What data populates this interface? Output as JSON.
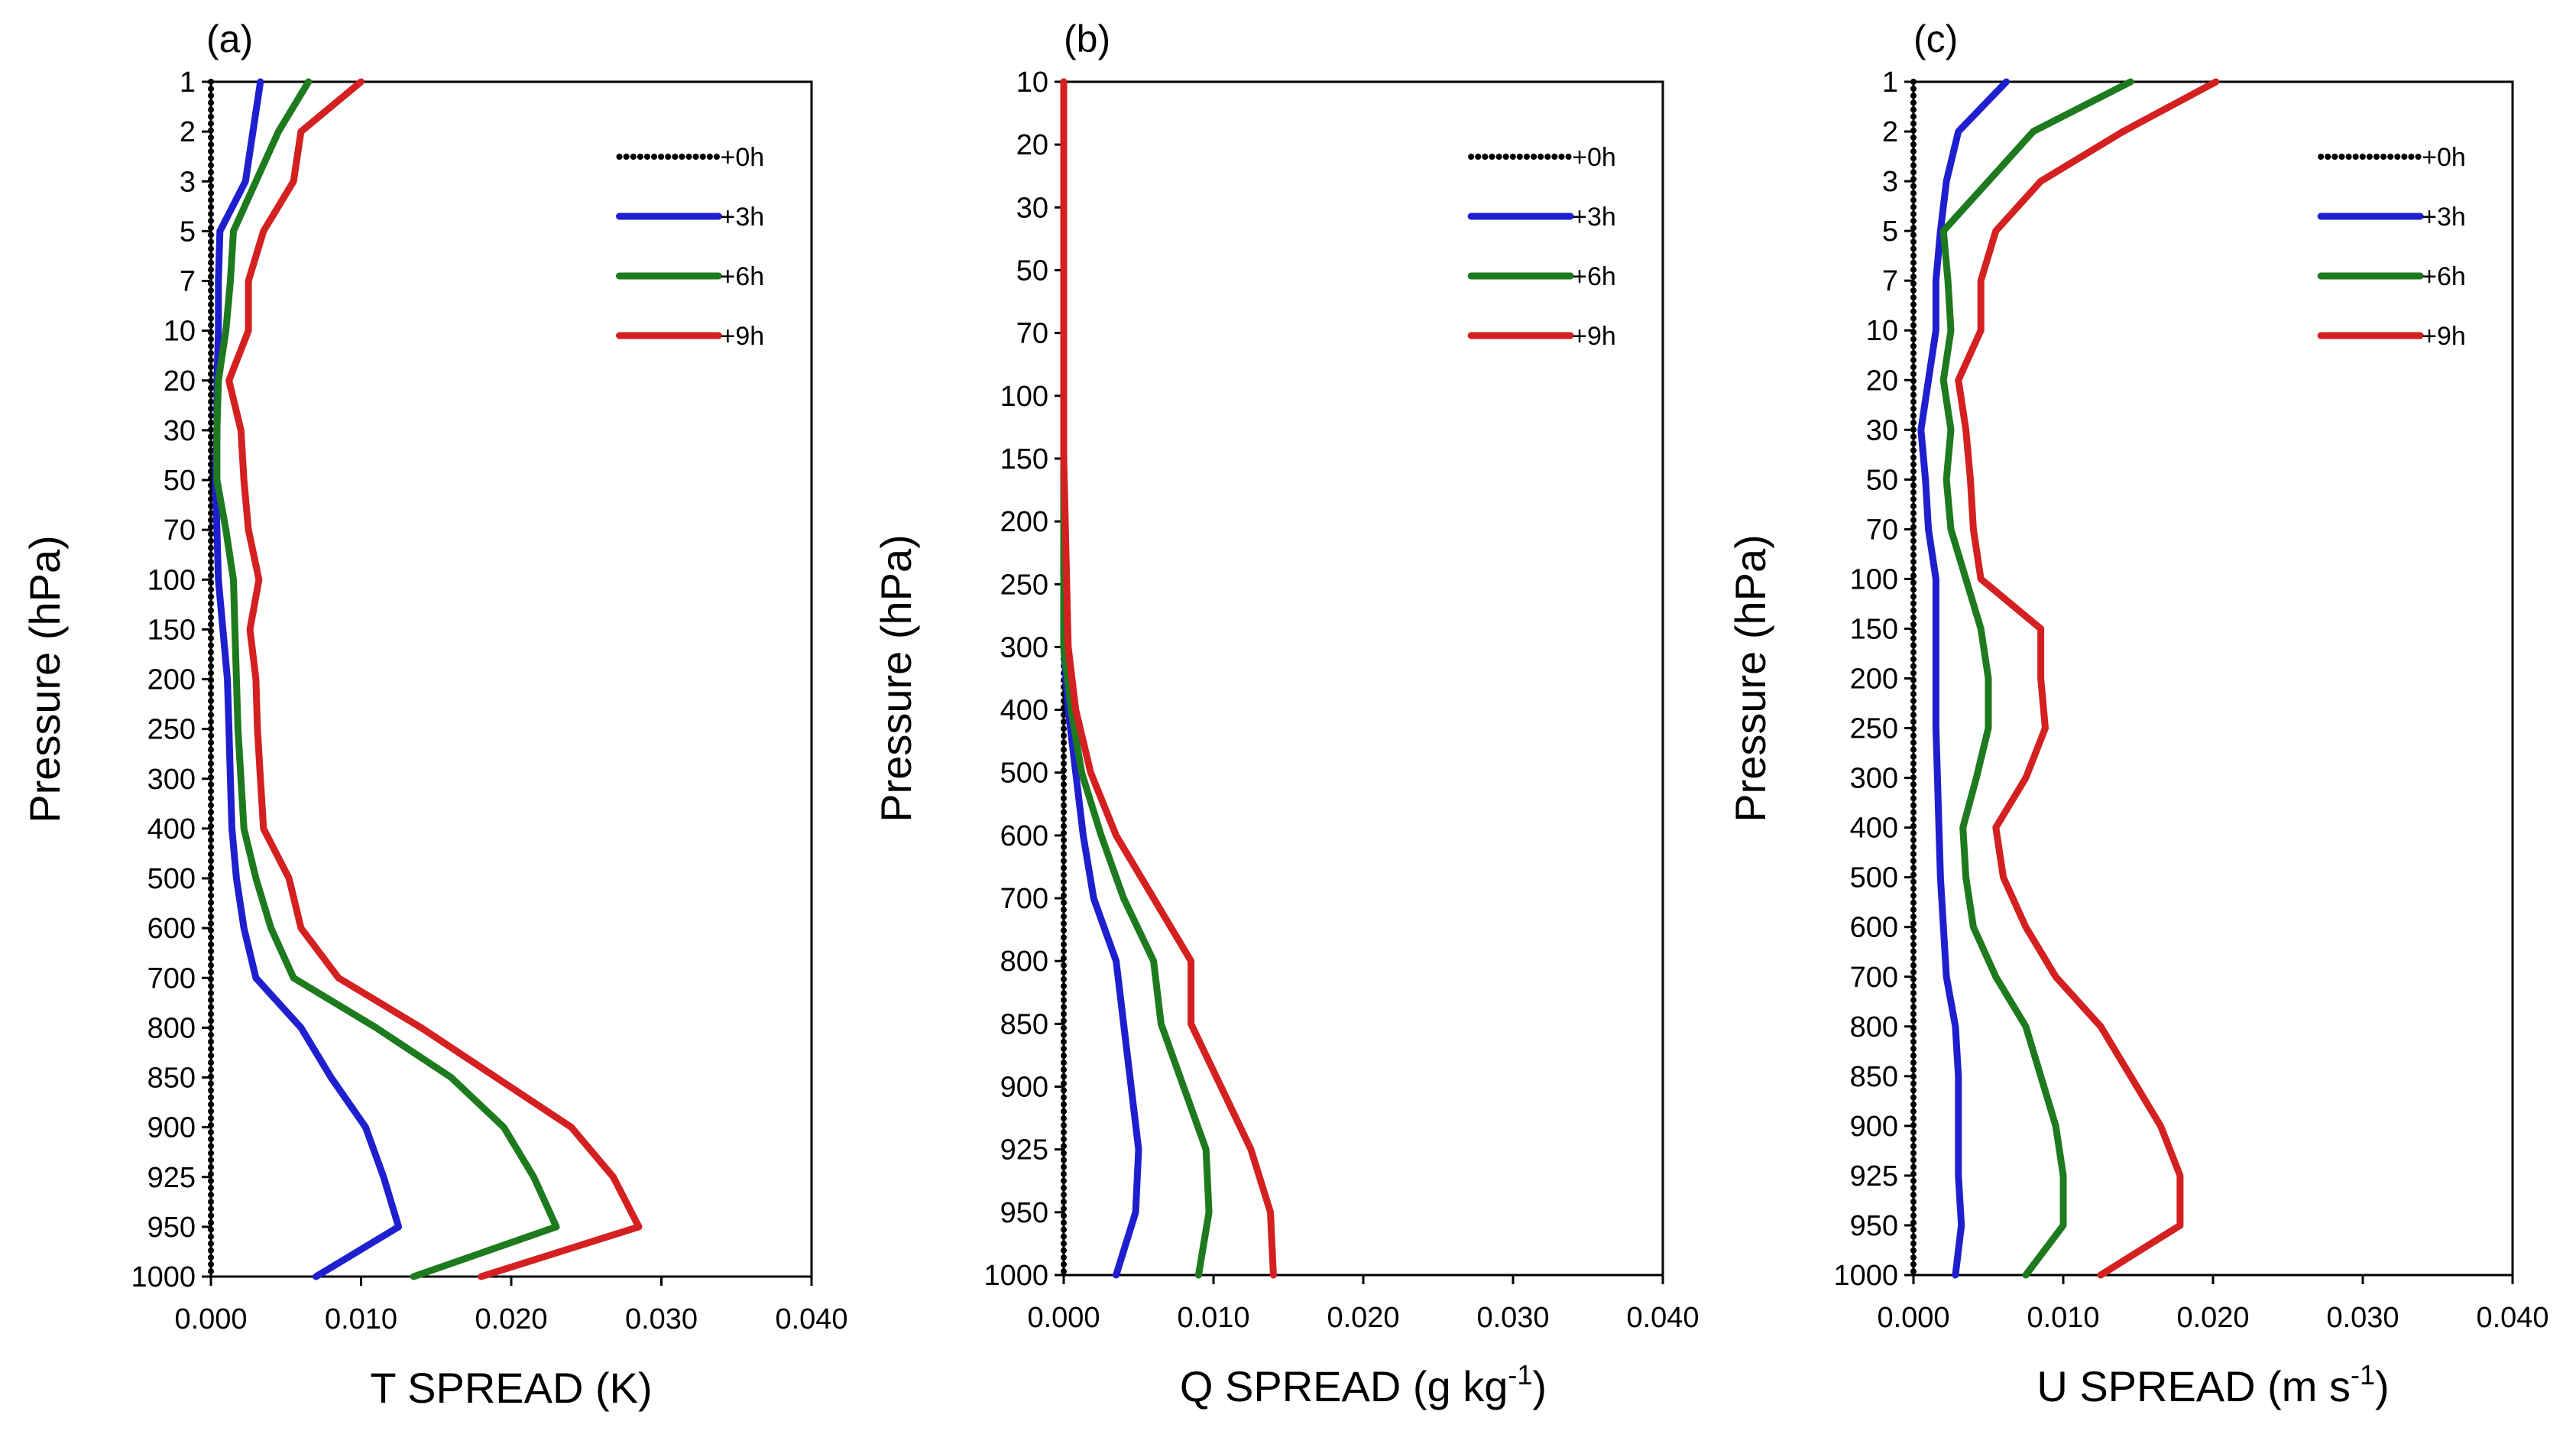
{
  "chart_data": [
    {
      "type": "line",
      "panel": "(a)",
      "xlabel": "T SPREAD (K)",
      "ylabel": "Pressure (hPa)",
      "xlim": [
        0,
        0.04
      ],
      "x_ticks": [
        "0.000",
        "0.010",
        "0.020",
        "0.030",
        "0.040"
      ],
      "y_ticks": [
        "1",
        "2",
        "3",
        "5",
        "7",
        "10",
        "20",
        "30",
        "50",
        "70",
        "100",
        "150",
        "200",
        "250",
        "300",
        "400",
        "500",
        "600",
        "700",
        "800",
        "850",
        "900",
        "925",
        "950",
        "1000"
      ],
      "legend_position": "top-right",
      "grid": false,
      "series": [
        {
          "name": "+0h",
          "color": "#000000",
          "style": "dotted",
          "values": [
            0,
            0,
            0,
            0,
            0,
            0,
            0,
            0,
            0,
            0,
            0,
            0,
            0,
            0,
            0,
            0,
            0,
            0,
            0,
            0,
            0,
            0,
            0,
            0,
            0
          ]
        },
        {
          "name": "+3h",
          "color": "#1f1fcf",
          "style": "solid",
          "values": [
            0.0033,
            0.0028,
            0.0023,
            0.0006,
            0.0005,
            0.0005,
            0.0004,
            0.0004,
            0.0003,
            0.0004,
            0.0005,
            0.0008,
            0.0011,
            0.0012,
            0.0013,
            0.0014,
            0.0017,
            0.0022,
            0.003,
            0.006,
            0.008,
            0.0103,
            0.0115,
            0.0125,
            0.007
          ]
        },
        {
          "name": "+6h",
          "color": "#1e7a1e",
          "style": "solid",
          "values": [
            0.0065,
            0.0045,
            0.003,
            0.0015,
            0.0013,
            0.001,
            0.0005,
            0.0004,
            0.0004,
            0.001,
            0.0015,
            0.0016,
            0.0017,
            0.0018,
            0.002,
            0.0022,
            0.003,
            0.004,
            0.0055,
            0.011,
            0.016,
            0.0195,
            0.0215,
            0.023,
            0.0135
          ]
        },
        {
          "name": "+9h",
          "color": "#d42020",
          "style": "solid",
          "values": [
            0.01,
            0.006,
            0.0055,
            0.0035,
            0.0025,
            0.0025,
            0.0012,
            0.002,
            0.0022,
            0.0025,
            0.0032,
            0.0026,
            0.003,
            0.0031,
            0.0033,
            0.0035,
            0.0052,
            0.006,
            0.0085,
            0.014,
            0.019,
            0.024,
            0.0268,
            0.0285,
            0.018
          ]
        }
      ]
    },
    {
      "type": "line",
      "panel": "(b)",
      "xlabel": "Q SPREAD (g kg",
      "xlabel_sup": "-1",
      "xlabel_end": ")",
      "ylabel": "Pressure (hPa)",
      "xlim": [
        0,
        0.04
      ],
      "x_ticks": [
        "0.000",
        "0.010",
        "0.020",
        "0.030",
        "0.040"
      ],
      "y_ticks": [
        "10",
        "20",
        "30",
        "50",
        "70",
        "100",
        "150",
        "200",
        "250",
        "300",
        "400",
        "500",
        "600",
        "700",
        "800",
        "850",
        "900",
        "925",
        "950",
        "1000"
      ],
      "legend_position": "top-right",
      "grid": false,
      "series": [
        {
          "name": "+0h",
          "color": "#000000",
          "style": "dotted",
          "values": [
            0,
            0,
            0,
            0,
            0,
            0,
            0,
            0,
            0,
            0,
            0,
            0,
            0,
            0,
            0,
            0,
            0,
            0,
            0,
            0
          ]
        },
        {
          "name": "+3h",
          "color": "#1f1fcf",
          "style": "solid",
          "values": [
            0,
            0,
            0,
            0,
            0,
            0,
            0,
            0,
            0,
            0,
            0.0003,
            0.0008,
            0.0013,
            0.002,
            0.0035,
            0.004,
            0.0045,
            0.005,
            0.0048,
            0.0035
          ]
        },
        {
          "name": "+6h",
          "color": "#1e7a1e",
          "style": "solid",
          "values": [
            0,
            0,
            0,
            0,
            0,
            0,
            0,
            0,
            0,
            0,
            0.0005,
            0.0012,
            0.0025,
            0.004,
            0.006,
            0.0065,
            0.008,
            0.0095,
            0.0097,
            0.009
          ]
        },
        {
          "name": "+9h",
          "color": "#d42020",
          "style": "solid",
          "values": [
            0,
            0,
            0,
            0,
            0,
            0,
            0,
            0.0001,
            0.0002,
            0.0003,
            0.0008,
            0.0018,
            0.0035,
            0.006,
            0.0085,
            0.0085,
            0.0105,
            0.0125,
            0.0138,
            0.014
          ]
        }
      ]
    },
    {
      "type": "line",
      "panel": "(c)",
      "xlabel": "U SPREAD (m s",
      "xlabel_sup": "-1",
      "xlabel_end": ")",
      "ylabel": "Pressure (hPa)",
      "xlim": [
        0,
        0.04
      ],
      "x_ticks": [
        "0.000",
        "0.010",
        "0.020",
        "0.030",
        "0.040"
      ],
      "y_ticks": [
        "1",
        "2",
        "3",
        "5",
        "7",
        "10",
        "20",
        "30",
        "50",
        "70",
        "100",
        "150",
        "200",
        "250",
        "300",
        "400",
        "500",
        "600",
        "700",
        "800",
        "850",
        "900",
        "925",
        "950",
        "1000"
      ],
      "legend_position": "top-right",
      "grid": false,
      "series": [
        {
          "name": "+0h",
          "color": "#000000",
          "style": "dotted",
          "values": [
            0,
            0,
            0,
            0,
            0,
            0,
            0,
            0,
            0,
            0,
            0,
            0,
            0,
            0,
            0,
            0,
            0,
            0,
            0,
            0,
            0,
            0,
            0,
            0,
            0
          ]
        },
        {
          "name": "+3h",
          "color": "#1f1fcf",
          "style": "solid",
          "values": [
            0.0062,
            0.003,
            0.0022,
            0.0018,
            0.0015,
            0.0015,
            0.001,
            0.0005,
            0.0008,
            0.001,
            0.0015,
            0.0015,
            0.0015,
            0.0015,
            0.0016,
            0.0017,
            0.0018,
            0.002,
            0.0022,
            0.0028,
            0.003,
            0.003,
            0.003,
            0.0032,
            0.0028
          ]
        },
        {
          "name": "+6h",
          "color": "#1e7a1e",
          "style": "solid",
          "values": [
            0.0145,
            0.008,
            0.005,
            0.002,
            0.0023,
            0.0025,
            0.002,
            0.0025,
            0.0022,
            0.0025,
            0.0035,
            0.0045,
            0.005,
            0.005,
            0.0042,
            0.0033,
            0.0035,
            0.004,
            0.0055,
            0.0075,
            0.0085,
            0.0095,
            0.01,
            0.01,
            0.0075
          ]
        },
        {
          "name": "+9h",
          "color": "#d42020",
          "style": "solid",
          "values": [
            0.0202,
            0.014,
            0.0085,
            0.0055,
            0.0045,
            0.0045,
            0.003,
            0.0035,
            0.0038,
            0.004,
            0.0045,
            0.0085,
            0.0085,
            0.0088,
            0.0075,
            0.0055,
            0.006,
            0.0075,
            0.0095,
            0.0125,
            0.0145,
            0.0165,
            0.0178,
            0.0178,
            0.0125
          ]
        }
      ]
    }
  ]
}
